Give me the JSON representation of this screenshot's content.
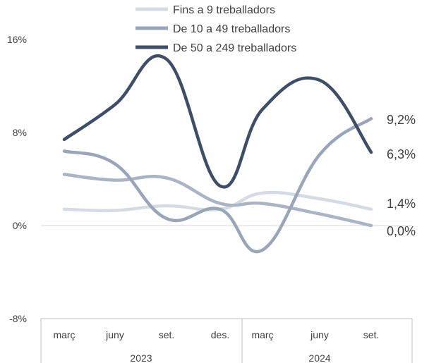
{
  "chart_data": {
    "type": "line",
    "y_ticks": [
      "16%",
      "8%",
      "0%",
      "-8%"
    ],
    "ylim": [
      -8,
      16
    ],
    "categories": [
      "març",
      "juny",
      "set.",
      "des.",
      "març",
      "juny",
      "set."
    ],
    "years": [
      "2023",
      "2024"
    ],
    "legend_position": "top",
    "grid": false,
    "series": [
      {
        "name": "Fins a 9 treballadors",
        "color": "#d5dbe3",
        "values": [
          1.4,
          1.3,
          1.7,
          1.4,
          2.8,
          2.3,
          1.4
        ],
        "end_label": "1,4%"
      },
      {
        "name": "De 10 a 49 treballadors",
        "color": "#9aa6b8",
        "values": [
          6.4,
          5.3,
          0.6,
          1.4,
          -2.1,
          6.1,
          9.2
        ],
        "end_label": "9,2%"
      },
      {
        "name": "De 50 a 249 treballadors",
        "color": "#3e4e66",
        "values": [
          7.4,
          10.4,
          14.3,
          3.4,
          10.0,
          12.5,
          6.3
        ],
        "end_label": "6,3%"
      }
    ],
    "extra_series": [
      {
        "color": "#aab4c4",
        "values": [
          4.4,
          3.9,
          4.1,
          1.9,
          1.9,
          1.0,
          0.0
        ],
        "end_label": "0,0%"
      }
    ]
  }
}
